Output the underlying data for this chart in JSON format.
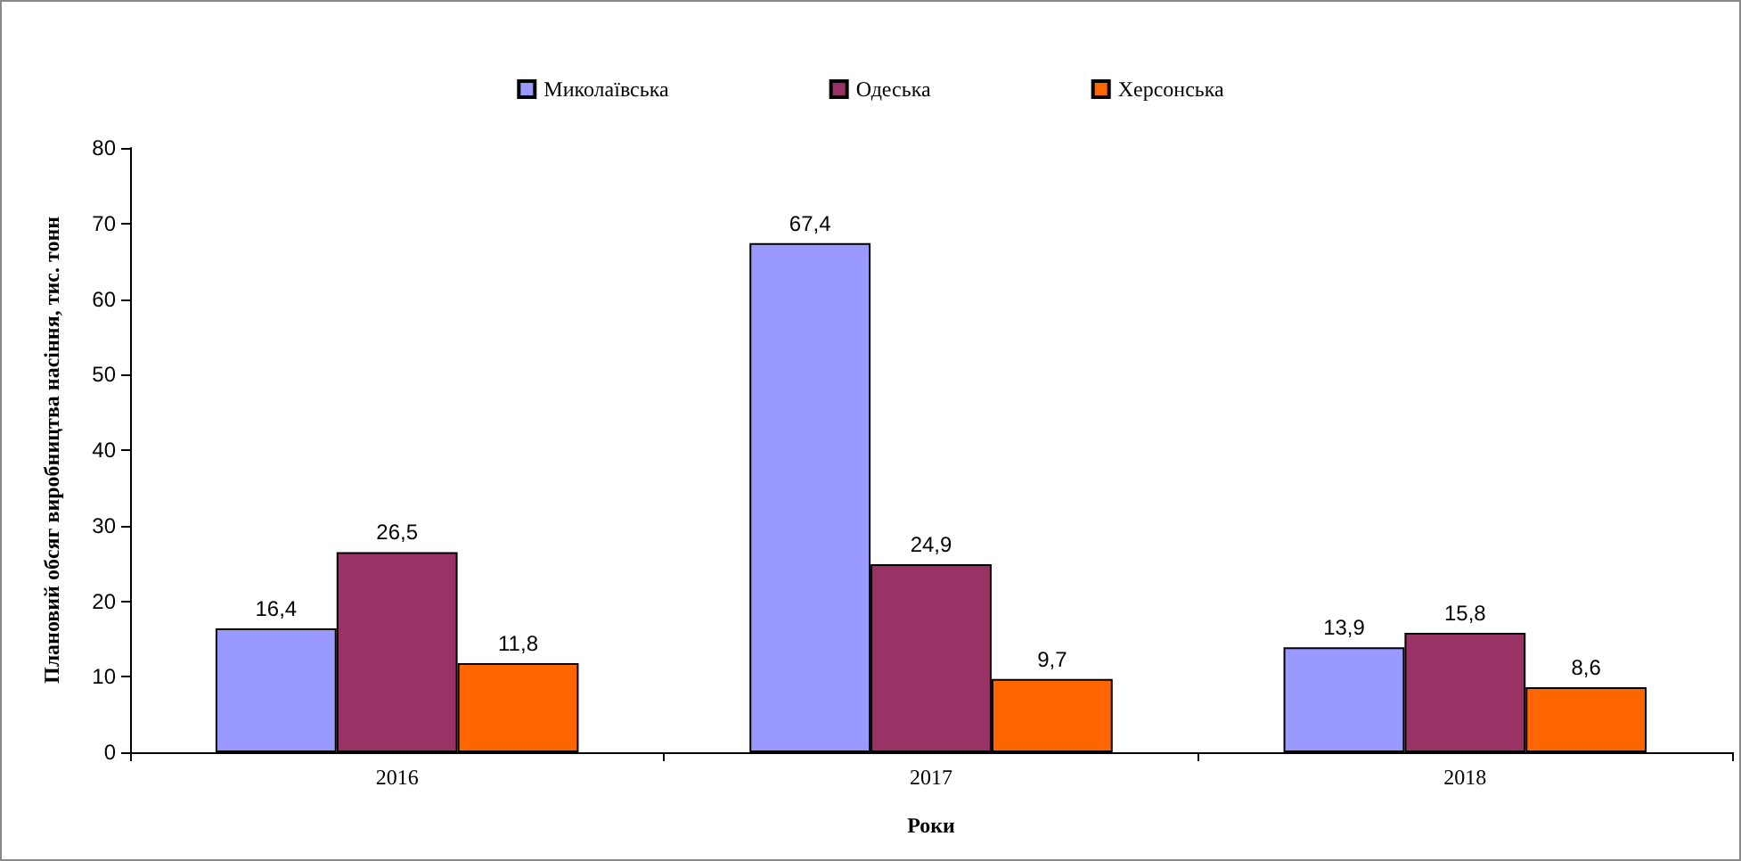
{
  "chart_data": {
    "type": "bar",
    "xlabel": "Роки",
    "ylabel": "Плановий обсяг виробництва насіння, тис. тонн",
    "categories": [
      "2016",
      "2017",
      "2018"
    ],
    "series": [
      {
        "name": "Миколаївська",
        "color": "#9999ff",
        "values": [
          16.4,
          67.4,
          13.9
        ],
        "value_labels": [
          "16,4",
          "67,4",
          "13,9"
        ]
      },
      {
        "name": "Одеська",
        "color": "#993366",
        "values": [
          26.5,
          24.9,
          15.8
        ],
        "value_labels": [
          "26,5",
          "24,9",
          "15,8"
        ]
      },
      {
        "name": "Херсонська",
        "color": "#ff6600",
        "values": [
          11.8,
          9.7,
          8.6
        ],
        "value_labels": [
          "11,8",
          "9,7",
          "8,6"
        ]
      }
    ],
    "ylim": [
      0,
      80
    ],
    "yticks": [
      0,
      10,
      20,
      30,
      40,
      50,
      60,
      70,
      80
    ],
    "grid": false,
    "legend": "top"
  }
}
